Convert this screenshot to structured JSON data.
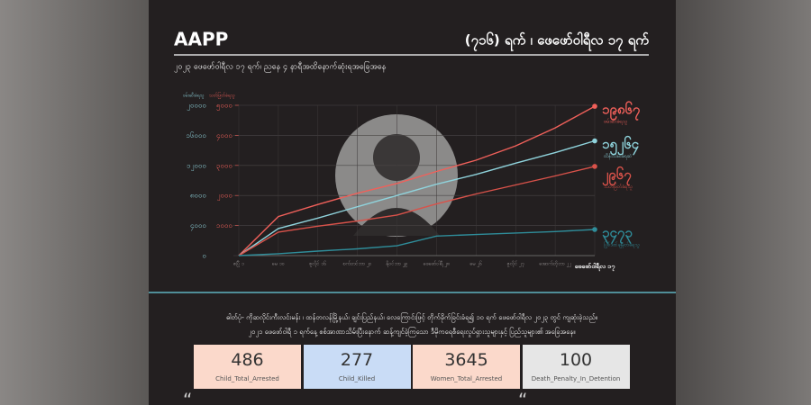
{
  "chart_data": {
    "type": "line",
    "brand": "AAPP",
    "title": "(၇၁၆) ရက် ၊ ဖေဖော်ဝါရီလ ၁၇ ရက်",
    "subtitle": "၂၀၂၃ ဖေဖော်ဝါရီလ ၁၇ ရက်၊ ညနေ ၄ နာရီအထိနောက်ဆုံးရအခြေအနေ",
    "ylabel": "ဖမ်းဆီးခံရသူ",
    "y2label": "သတ်ဖြတ်ခံရသူ",
    "categories": [
      "ဧပြီ ၁",
      "မေ ၁၀",
      "ဇူလိုင် ၁၆",
      "စက်တင်ဘာ ၂၀",
      "နိုဝင်ဘာ ၂၉",
      "ဖေဖော်ဝါရီ ၂၈",
      "မေ ၂၆",
      "ဇူလိုင် ၂၇",
      "အောက်တိုဘာ ၂၂",
      "ဖေဖော်ဝါရီလ ၁၇"
    ],
    "ylim": [
      0,
      20000
    ],
    "yticks": [
      {
        "value": 0,
        "label": "၀"
      },
      {
        "value": 4000,
        "label": "၄၀၀၀"
      },
      {
        "value": 8000,
        "label": "၈၀၀၀"
      },
      {
        "value": 12000,
        "label": "၁၂၀၀၀"
      },
      {
        "value": 16000,
        "label": "၁၆၀၀၀"
      },
      {
        "value": 20000,
        "label": "၂၀၀၀၀"
      }
    ],
    "y2lim": [
      0,
      5000
    ],
    "y2ticks": [
      {
        "value": 1000,
        "label": "၁၀၀၀"
      },
      {
        "value": 2000,
        "label": "၂၀၀၀"
      },
      {
        "value": 3000,
        "label": "၃၀၀၀"
      },
      {
        "value": 4000,
        "label": "၄၀၀၀"
      },
      {
        "value": 5000,
        "label": "၅၀၀၀"
      }
    ],
    "grid": true,
    "series": [
      {
        "name": "ဖမ်းဆီးခံရသူ",
        "color": "#f0605a",
        "values": [
          0,
          5200,
          6800,
          8300,
          9600,
          11200,
          12700,
          14600,
          17000,
          19867
        ],
        "value_labels": [
          null,
          null,
          null,
          null,
          null,
          null,
          null,
          null,
          null,
          "၁၉၈၆၇"
        ]
      },
      {
        "name": "ထိန်းသိမ်းခံရဆဲ",
        "color": "#8fd3dc",
        "values": [
          0,
          3600,
          5000,
          6500,
          8000,
          9500,
          10800,
          12300,
          13700,
          15264
        ],
        "value_labels": [
          null,
          null,
          null,
          null,
          null,
          null,
          null,
          null,
          null,
          "၁၅၂၆၄"
        ]
      },
      {
        "name": "သတ်ဖြတ်ခံရသူ",
        "color": "#d9524a",
        "axis": "y2",
        "values": [
          0,
          780,
          980,
          1150,
          1350,
          1720,
          2050,
          2350,
          2650,
          2967
        ],
        "value_labels": [
          null,
          null,
          null,
          null,
          null,
          null,
          null,
          null,
          null,
          "၂၉၆၇"
        ]
      },
      {
        "name": "ပြစ်ဒဏ်ချမှတ်ခံရသူ",
        "color": "#2f8d9a",
        "values": [
          0,
          250,
          600,
          900,
          1300,
          2600,
          2800,
          3000,
          3200,
          3473
        ],
        "value_labels": [
          null,
          null,
          null,
          null,
          null,
          null,
          null,
          null,
          null,
          "၃၄၇၃"
        ]
      }
    ]
  },
  "body": {
    "lines": [
      "ဓါတ်ပုံ- ကိုဆလိုင်းကီးလင်းမန်း ၊ ထန်တလန်မြို့နယ်၊ ချင်းပြည်နယ်၊ လေကြောင်းဖြင့် တိုက်ခိုက်ခြင်းခံရ၍ ၁၀ ရက် ဖေဖော်ဝါရီလ ၂၀၂၃ တွင် ကျဆုံးခဲ့သည်။",
      "၂၀၂၁ ဖေဖော်ဝါရီ ၁ ရက်နေ့ စစ်အာဏာသိမ်းပြီးနောက် ဆန့်ကျင်ခဲ့ကြသော ဒီမိုကရေစီရေးလှုပ်ရှားသူများနှင့် ပြည်သူများ၏ အခြေအနေ။"
    ]
  },
  "stats": [
    {
      "value": 486,
      "label": "Child_Total_Arrested",
      "color": "#fbd9cb"
    },
    {
      "value": 277,
      "label": "Child_Killed",
      "color": "#c9dcf6"
    },
    {
      "value": 3645,
      "label": "Women_Total_Arrested",
      "color": "#fbd9cb"
    },
    {
      "value": 100,
      "label": "Death_Penalty_In_Detention",
      "color": "#e6e6e6"
    }
  ]
}
